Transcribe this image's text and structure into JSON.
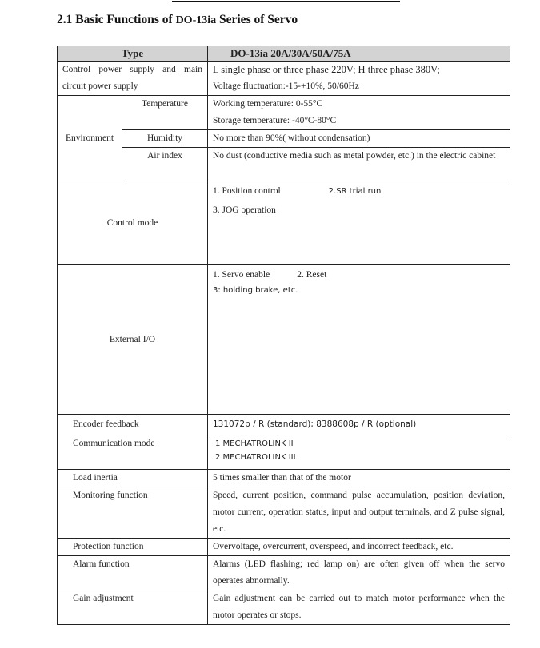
{
  "heading": {
    "prefix": "2.1 Basic Functions of",
    "model": "DO-13ia",
    "suffix": "Series of Servo"
  },
  "table": {
    "header": {
      "type_label": "Type",
      "model_label": "DO-13ia  20A/30A/50A/75A"
    },
    "power": {
      "label": "Control power supply and main circuit power supply",
      "line1": "L single phase or three phase 220V; H three phase 380V;",
      "line2": "Voltage fluctuation:-15-+10%, 50/60Hz"
    },
    "environment": {
      "label": "Environment",
      "temperature": {
        "label": "Temperature",
        "line1": "Working temperature: 0-55°C",
        "line2": "Storage temperature: -40°C-80°C"
      },
      "humidity": {
        "label": "Humidity",
        "value": "No more than 90%( without condensation)"
      },
      "air": {
        "label": "Air index",
        "value": "No dust (conductive media such as metal powder, etc.) in the electric cabinet"
      }
    },
    "control_mode": {
      "label": "Control mode",
      "item1": "1. Position control",
      "item2": "2.SR trial run",
      "item3": "3. JOG operation"
    },
    "external_io": {
      "label": "External I/O",
      "item1": "1. Servo enable",
      "item2": "2. Reset",
      "item3": "3: holding brake, etc."
    },
    "encoder": {
      "label": "Encoder feedback",
      "value": "131072p / R (standard); 8388608p / R (optional)"
    },
    "communication": {
      "label": "Communication mode",
      "item1": "1 MECHATROLINK II",
      "item2": "2 MECHATROLINK III"
    },
    "load": {
      "label": "Load inertia",
      "value": "5 times smaller than that of the motor"
    },
    "monitoring": {
      "label": "Monitoring function",
      "value": "Speed, current position, command pulse accumulation, position deviation, motor current, operation status, input and output terminals, and Z pulse signal, etc."
    },
    "protection": {
      "label": "Protection function",
      "value": "Overvoltage, overcurrent, overspeed, and incorrect feedback, etc."
    },
    "alarm": {
      "label": "Alarm function",
      "value": "Alarms (LED flashing; red lamp on) are often given off when the servo operates abnormally."
    },
    "gain": {
      "label": "Gain adjustment",
      "value": "Gain adjustment can be carried out to match motor performance when the motor operates or stops."
    }
  }
}
